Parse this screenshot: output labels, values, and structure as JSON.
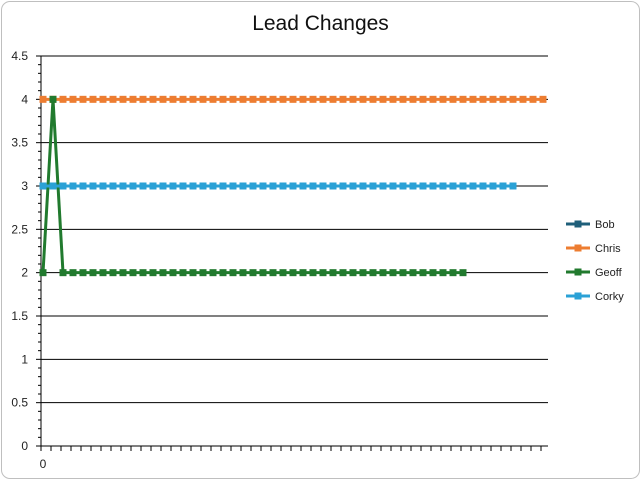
{
  "chart_data": {
    "type": "line",
    "title": "Lead Changes",
    "xlabel": "",
    "ylabel": "",
    "ylim": [
      0,
      4.5
    ],
    "yticks": [
      "0",
      "0.5",
      "1",
      "1.5",
      "2",
      "2.5",
      "3",
      "3.5",
      "4",
      "4.5"
    ],
    "xtick_labels": [
      "0"
    ],
    "grid": true,
    "legend_position": "right",
    "x_count": 51,
    "series": [
      {
        "name": "Bob",
        "color": "#1f5f7a",
        "values": []
      },
      {
        "name": "Chris",
        "color": "#ed7d31",
        "values": [
          4,
          4,
          4,
          4,
          4,
          4,
          4,
          4,
          4,
          4,
          4,
          4,
          4,
          4,
          4,
          4,
          4,
          4,
          4,
          4,
          4,
          4,
          4,
          4,
          4,
          4,
          4,
          4,
          4,
          4,
          4,
          4,
          4,
          4,
          4,
          4,
          4,
          4,
          4,
          4,
          4,
          4,
          4,
          4,
          4,
          4,
          4,
          4,
          4,
          4,
          4
        ]
      },
      {
        "name": "Geoff",
        "color": "#217a2e",
        "values": [
          2,
          4,
          2,
          2,
          2,
          2,
          2,
          2,
          2,
          2,
          2,
          2,
          2,
          2,
          2,
          2,
          2,
          2,
          2,
          2,
          2,
          2,
          2,
          2,
          2,
          2,
          2,
          2,
          2,
          2,
          2,
          2,
          2,
          2,
          2,
          2,
          2,
          2,
          2,
          2,
          2,
          2,
          2
        ]
      },
      {
        "name": "Corky",
        "color": "#2aa1d6",
        "values": [
          3,
          3,
          3,
          3,
          3,
          3,
          3,
          3,
          3,
          3,
          3,
          3,
          3,
          3,
          3,
          3,
          3,
          3,
          3,
          3,
          3,
          3,
          3,
          3,
          3,
          3,
          3,
          3,
          3,
          3,
          3,
          3,
          3,
          3,
          3,
          3,
          3,
          3,
          3,
          3,
          3,
          3,
          3,
          3,
          3,
          3,
          3,
          3
        ]
      }
    ]
  }
}
